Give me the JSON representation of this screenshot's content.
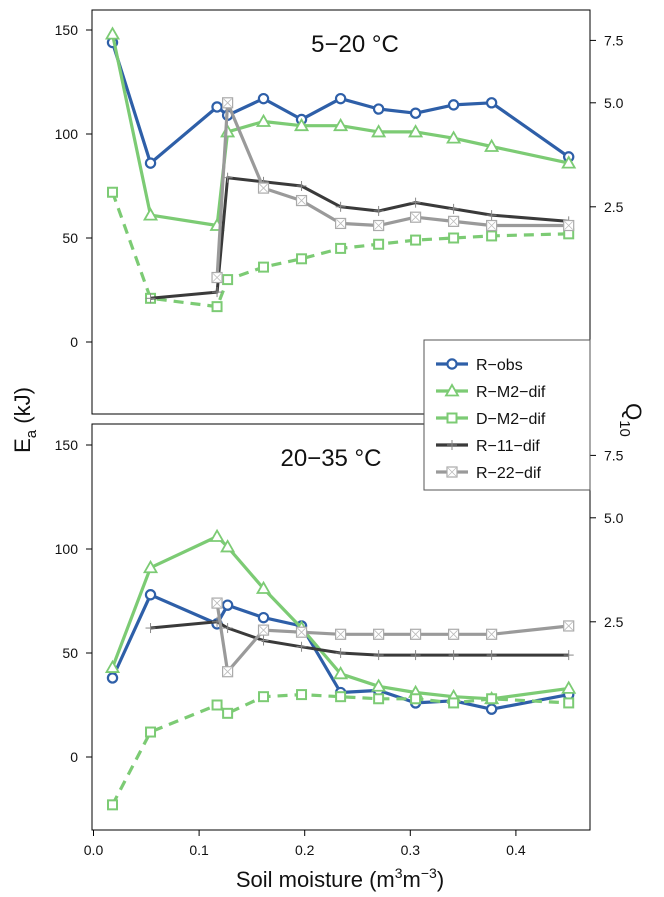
{
  "figure": {
    "y_axis_label": "E",
    "y_axis_label_sub": "a",
    "y_axis_label_unit": " (kJ)",
    "right_axis_label": "Q",
    "right_axis_label_sub": "10",
    "x_axis_label": "Soil moisture (m",
    "x_axis_label_sup1": "3",
    "x_axis_label_mid": "m",
    "x_axis_label_sup2": "−3",
    "x_axis_label_end": ")"
  },
  "colors": {
    "R-obs": "#2e5fa8",
    "R-M2-dif": "#7ccb74",
    "D-M2-dif": "#7ccb74",
    "R-11-dif": "#3a3a3a",
    "R-22-dif": "#9a9a9a"
  },
  "legend": {
    "items": [
      "R−obs",
      "R−M2−dif",
      "D−M2−dif",
      "R−11−dif",
      "R−22−dif"
    ]
  },
  "chart_data": [
    {
      "type": "line",
      "panel_label": "5−20 °C",
      "xlabel": "Soil moisture (m3m−3)",
      "ylabel": "Ea (kJ)",
      "y2label": "Q10",
      "xlim": [
        0,
        0.47
      ],
      "ylim": [
        -35,
        157
      ],
      "xticks": [
        "0.0",
        "0.1",
        "0.2",
        "0.3",
        "0.4"
      ],
      "yticks": [
        "0",
        "50",
        "100",
        "150"
      ],
      "y2ticks": [
        "2.5",
        "5.0",
        "7.5"
      ],
      "y2tick_positions_in_Ea_units": [
        65,
        115,
        145
      ],
      "series": [
        {
          "name": "R−obs",
          "style": "solid",
          "marker": "circle",
          "x": [
            0.018,
            0.054,
            0.117,
            0.127,
            0.161,
            0.197,
            0.234,
            0.27,
            0.305,
            0.341,
            0.377,
            0.45
          ],
          "y": [
            144,
            86,
            113,
            109,
            117,
            107,
            117,
            112,
            110,
            114,
            115,
            89
          ]
        },
        {
          "name": "R−M2−dif",
          "style": "solid",
          "marker": "triangle",
          "x": [
            0.018,
            0.054,
            0.117,
            0.127,
            0.161,
            0.197,
            0.234,
            0.27,
            0.305,
            0.341,
            0.377,
            0.45
          ],
          "y": [
            148,
            61,
            56,
            101,
            106,
            104,
            104,
            101,
            101,
            98,
            94,
            86
          ]
        },
        {
          "name": "D−M2−dif",
          "style": "dashed",
          "marker": "square",
          "x": [
            0.018,
            0.054,
            0.117,
            0.127,
            0.161,
            0.197,
            0.234,
            0.27,
            0.305,
            0.341,
            0.377,
            0.45
          ],
          "y": [
            72,
            21,
            17,
            30,
            36,
            40,
            45,
            47,
            49,
            50,
            51,
            52
          ]
        },
        {
          "name": "R−11−dif",
          "style": "solid",
          "marker": "plus",
          "x": [
            0.054,
            0.117,
            0.127,
            0.161,
            0.197,
            0.234,
            0.27,
            0.305,
            0.341,
            0.377,
            0.45
          ],
          "y": [
            21,
            24,
            79,
            77,
            75,
            65,
            63,
            67,
            64,
            61,
            58
          ]
        },
        {
          "name": "R−22−dif",
          "style": "solid",
          "marker": "boxed-x",
          "x": [
            0.117,
            0.127,
            0.161,
            0.197,
            0.234,
            0.27,
            0.305,
            0.341,
            0.377,
            0.45
          ],
          "y": [
            31,
            115,
            74,
            68,
            57,
            56,
            60,
            58,
            56,
            56
          ]
        }
      ]
    },
    {
      "type": "line",
      "panel_label": "20−35 °C",
      "xlabel": "Soil moisture (m3m−3)",
      "ylabel": "Ea (kJ)",
      "y2label": "Q10",
      "xlim": [
        0,
        0.47
      ],
      "ylim": [
        -35,
        157
      ],
      "xticks": [
        "0.0",
        "0.1",
        "0.2",
        "0.3",
        "0.4"
      ],
      "yticks": [
        "0",
        "50",
        "100",
        "150"
      ],
      "y2ticks": [
        "2.5",
        "5.0",
        "7.5"
      ],
      "y2tick_positions_in_Ea_units": [
        65,
        115,
        145
      ],
      "series": [
        {
          "name": "R−obs",
          "style": "solid",
          "marker": "circle",
          "x": [
            0.018,
            0.054,
            0.117,
            0.127,
            0.161,
            0.197,
            0.234,
            0.27,
            0.305,
            0.341,
            0.377,
            0.45
          ],
          "y": [
            38,
            78,
            64,
            73,
            67,
            63,
            31,
            32,
            26,
            27,
            23,
            30
          ]
        },
        {
          "name": "R−M2−dif",
          "style": "solid",
          "marker": "triangle",
          "x": [
            0.018,
            0.054,
            0.117,
            0.127,
            0.161,
            0.197,
            0.234,
            0.27,
            0.305,
            0.341,
            0.377,
            0.45
          ],
          "y": [
            43,
            91,
            106,
            101,
            81,
            62,
            40,
            34,
            31,
            29,
            28,
            33
          ]
        },
        {
          "name": "D−M2−dif",
          "style": "dashed",
          "marker": "square",
          "x": [
            0.018,
            0.054,
            0.117,
            0.127,
            0.161,
            0.197,
            0.234,
            0.27,
            0.305,
            0.341,
            0.377,
            0.45
          ],
          "y": [
            -23,
            12,
            25,
            21,
            29,
            30,
            29,
            28,
            28,
            26,
            28,
            26
          ]
        },
        {
          "name": "R−11−dif",
          "style": "solid",
          "marker": "plus",
          "x": [
            0.054,
            0.117,
            0.127,
            0.161,
            0.197,
            0.234,
            0.27,
            0.305,
            0.341,
            0.377,
            0.45
          ],
          "y": [
            62,
            65,
            62,
            56,
            53,
            50,
            49,
            49,
            49,
            49,
            49
          ]
        },
        {
          "name": "R−22−dif",
          "style": "solid",
          "marker": "boxed-x",
          "x": [
            0.117,
            0.127,
            0.161,
            0.197,
            0.234,
            0.27,
            0.305,
            0.341,
            0.377,
            0.45
          ],
          "y": [
            74,
            41,
            61,
            60,
            59,
            59,
            59,
            59,
            59,
            63
          ]
        }
      ]
    }
  ]
}
